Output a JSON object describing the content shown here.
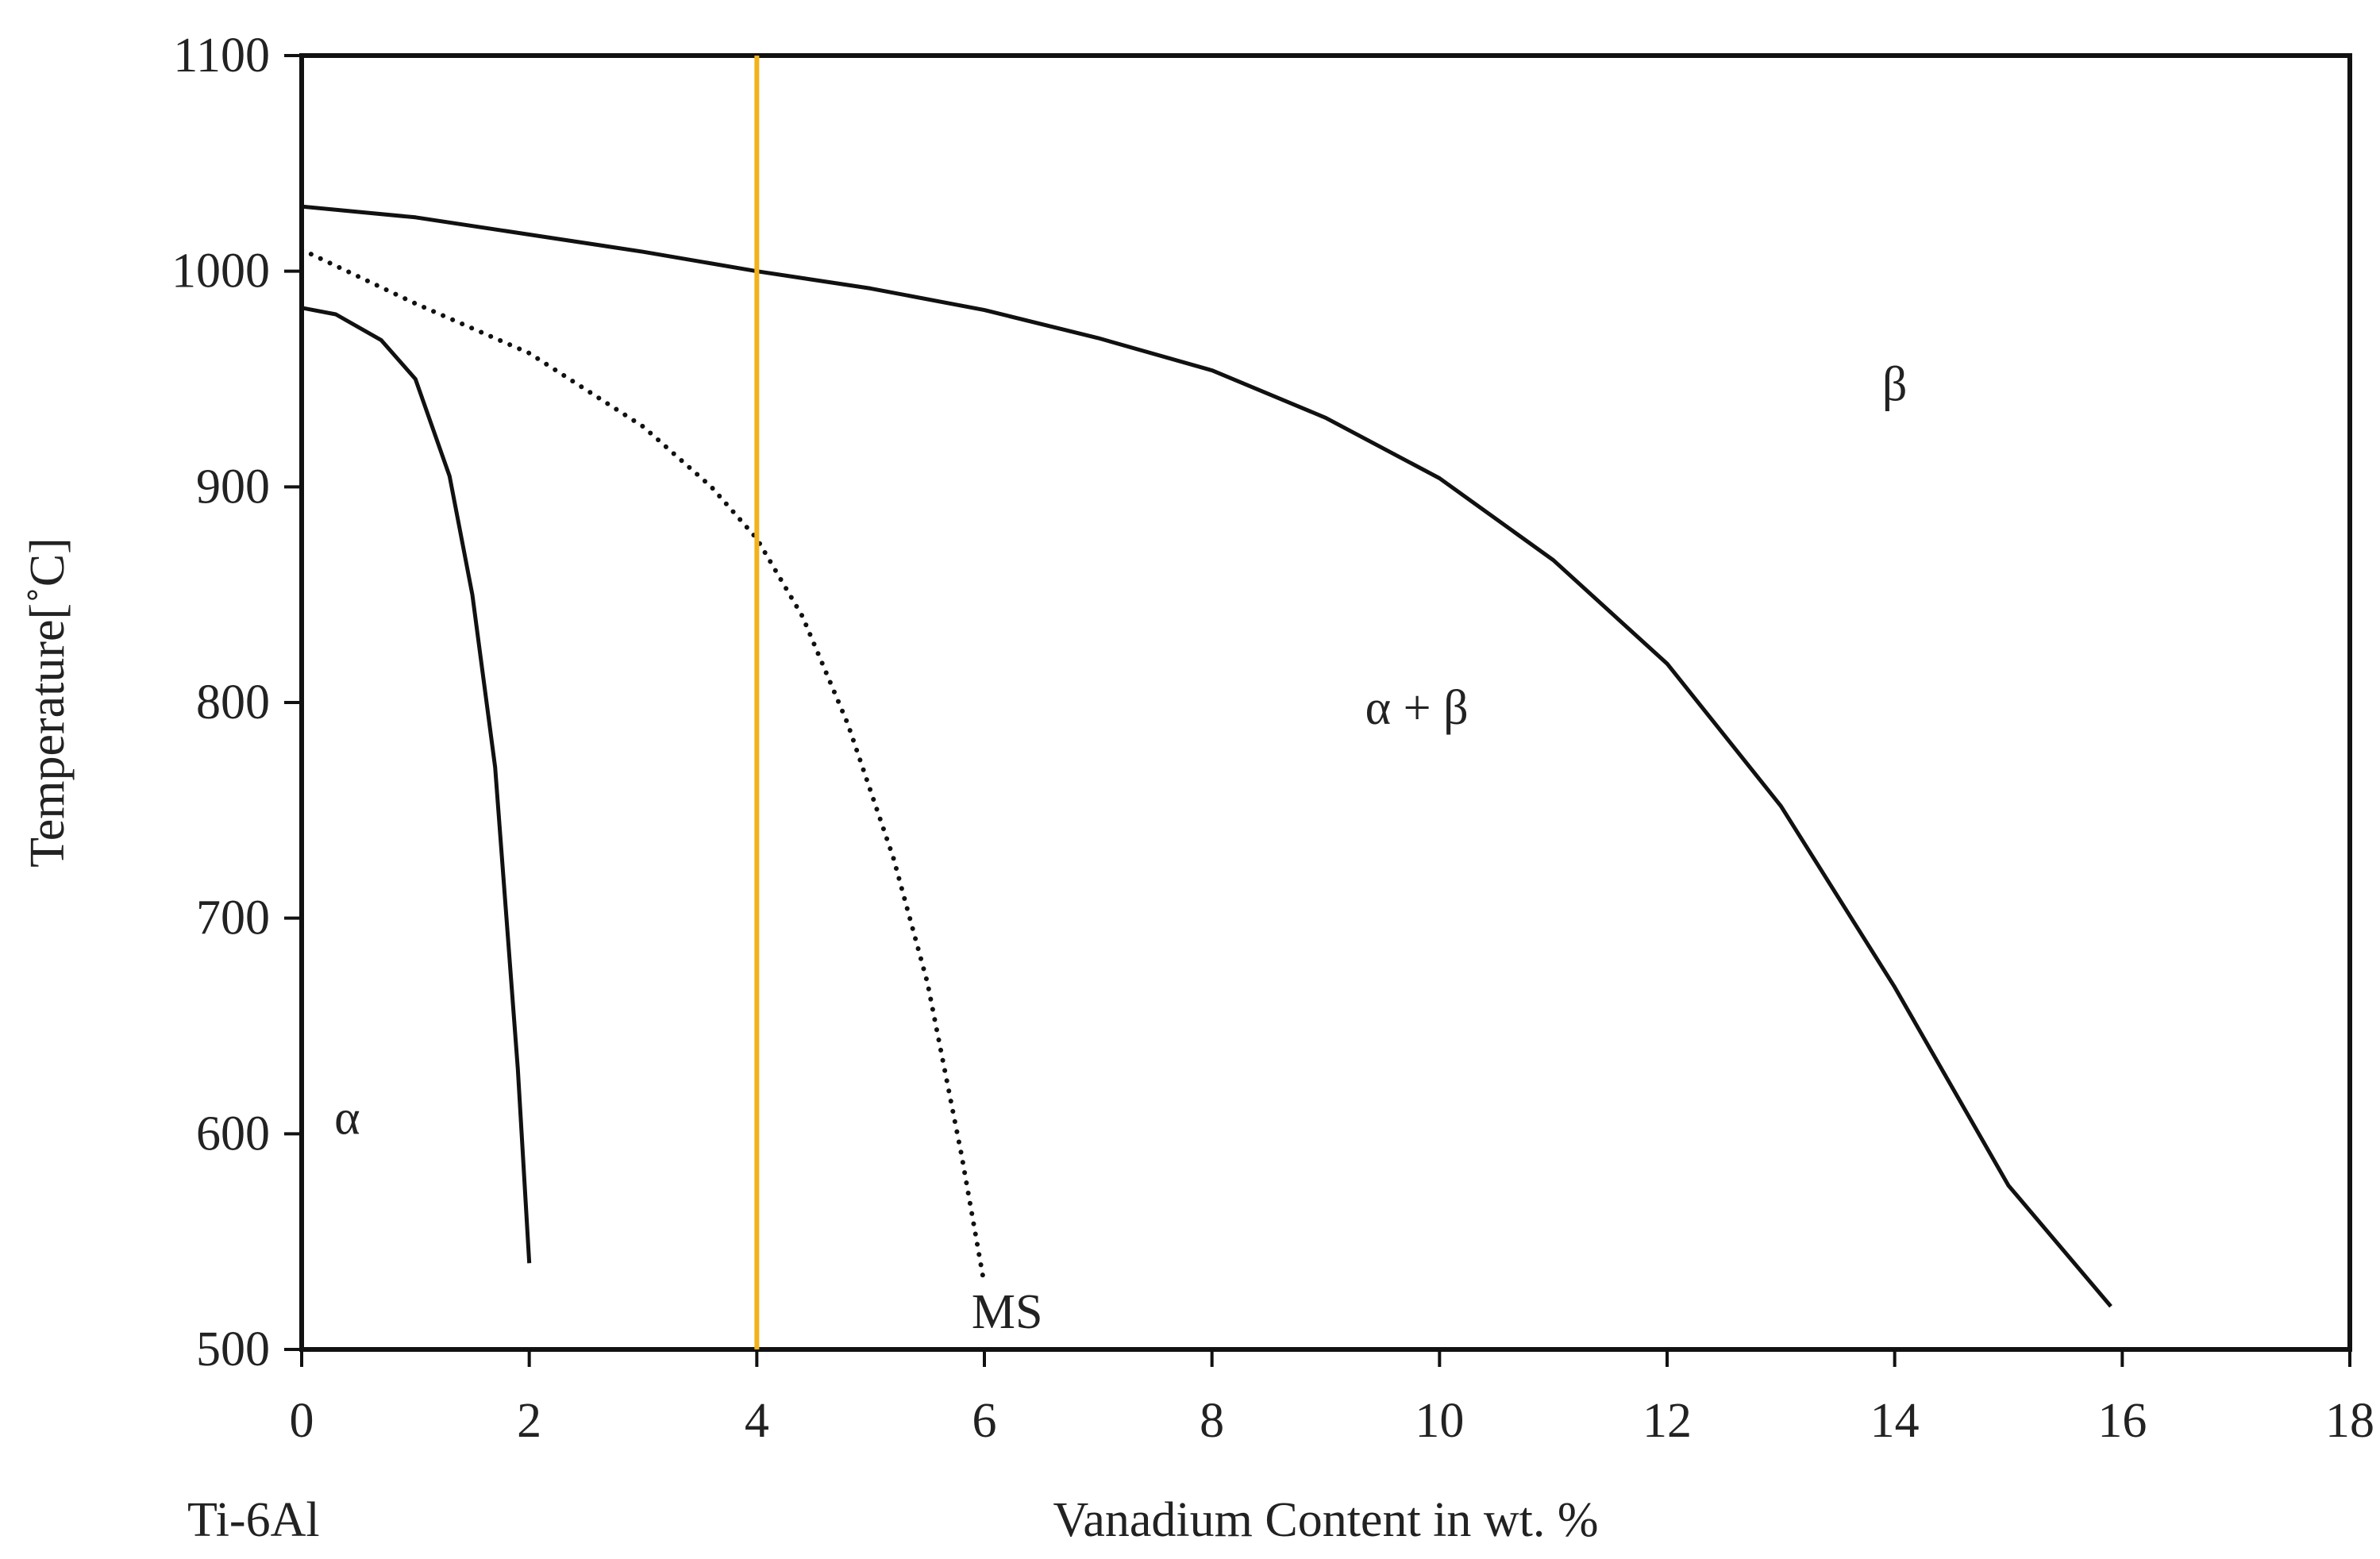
{
  "chart_data": {
    "type": "line",
    "title": "",
    "xlabel": "Vanadium Content in wt. %",
    "ylabel": "Temperature[˚C]",
    "base_label": "Ti-6Al",
    "xlim": [
      0,
      18
    ],
    "ylim": [
      500,
      1100
    ],
    "x_ticks": [
      0,
      2,
      4,
      6,
      8,
      10,
      12,
      14,
      16,
      18
    ],
    "y_ticks": [
      500,
      600,
      700,
      800,
      900,
      1000,
      1100
    ],
    "grid": false,
    "colors": {
      "curve": "#111111",
      "highlight": "#f2b21c",
      "frame": "#111111"
    },
    "series": [
      {
        "style": "solid",
        "points": [
          [
            0,
            1030
          ],
          [
            1,
            1025
          ],
          [
            2,
            1017
          ],
          [
            3,
            1009
          ],
          [
            4,
            1000
          ],
          [
            5,
            992
          ],
          [
            6,
            982
          ],
          [
            7,
            969
          ],
          [
            8,
            954
          ],
          [
            9,
            932
          ],
          [
            10,
            904
          ],
          [
            11,
            866
          ],
          [
            12,
            818
          ],
          [
            13,
            752
          ],
          [
            14,
            668
          ],
          [
            15,
            576
          ],
          [
            15.9,
            520
          ]
        ]
      },
      {
        "style": "dotted",
        "points": [
          [
            0,
            1010
          ],
          [
            1,
            985
          ],
          [
            2,
            962
          ],
          [
            3,
            928
          ],
          [
            3.6,
            900
          ],
          [
            4,
            876
          ],
          [
            4.4,
            840
          ],
          [
            4.8,
            790
          ],
          [
            5.2,
            728
          ],
          [
            5.5,
            670
          ],
          [
            5.8,
            590
          ],
          [
            6,
            530
          ]
        ]
      },
      {
        "style": "solid",
        "points": [
          [
            0,
            983
          ],
          [
            0.3,
            980
          ],
          [
            0.7,
            968
          ],
          [
            1,
            950
          ],
          [
            1.3,
            905
          ],
          [
            1.5,
            850
          ],
          [
            1.7,
            770
          ],
          [
            1.8,
            700
          ],
          [
            1.9,
            630
          ],
          [
            2,
            540
          ]
        ]
      }
    ],
    "markers": [
      {
        "x": 4,
        "style": "vertical-line",
        "color": "#f2b21c"
      }
    ],
    "annotations": [
      {
        "text": "β",
        "x": 14,
        "y": 940
      },
      {
        "text": "α + β",
        "x": 9.8,
        "y": 790
      },
      {
        "text": "α",
        "x": 0.4,
        "y": 600
      },
      {
        "text": "MS",
        "x": 6.2,
        "y": 510
      }
    ]
  }
}
